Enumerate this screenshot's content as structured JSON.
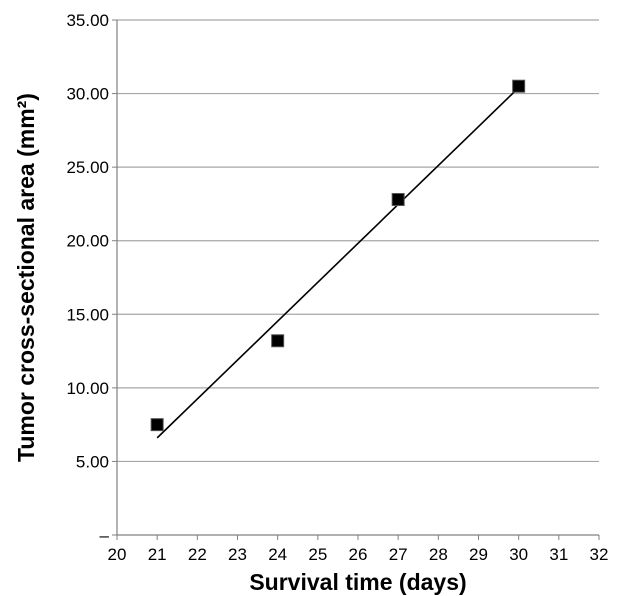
{
  "chart_data": {
    "type": "scatter",
    "title": "",
    "xlabel": "Survival time (days)",
    "ylabel": "Tumor cross-sectional area (mm²)",
    "xlim": [
      20,
      32
    ],
    "ylim": [
      0,
      35
    ],
    "x_ticks": [
      20,
      21,
      22,
      23,
      24,
      25,
      26,
      27,
      28,
      29,
      30,
      31,
      32
    ],
    "x_tick_labels": [
      "20",
      "21",
      "22",
      "23",
      "24",
      "25",
      "26",
      "27",
      "28",
      "29",
      "30",
      "31",
      "32"
    ],
    "y_ticks": [
      0,
      5,
      10,
      15,
      20,
      25,
      30,
      35
    ],
    "y_tick_labels": [
      "–",
      "5.00",
      "10.00",
      "15.00",
      "20.00",
      "25.00",
      "30.00",
      "35.00"
    ],
    "grid": "horizontal",
    "legend": "none",
    "series": [
      {
        "x": [
          21,
          24,
          27,
          30
        ],
        "y": [
          7.5,
          13.2,
          22.8,
          30.5
        ],
        "marker": "square",
        "color": "#000000"
      }
    ],
    "trendline": {
      "type": "linear",
      "x": [
        21,
        30
      ],
      "y": [
        6.6,
        30.4
      ],
      "color": "#000000"
    },
    "colors": {
      "grid": "#a6a6a6",
      "axis": "#808080"
    }
  }
}
